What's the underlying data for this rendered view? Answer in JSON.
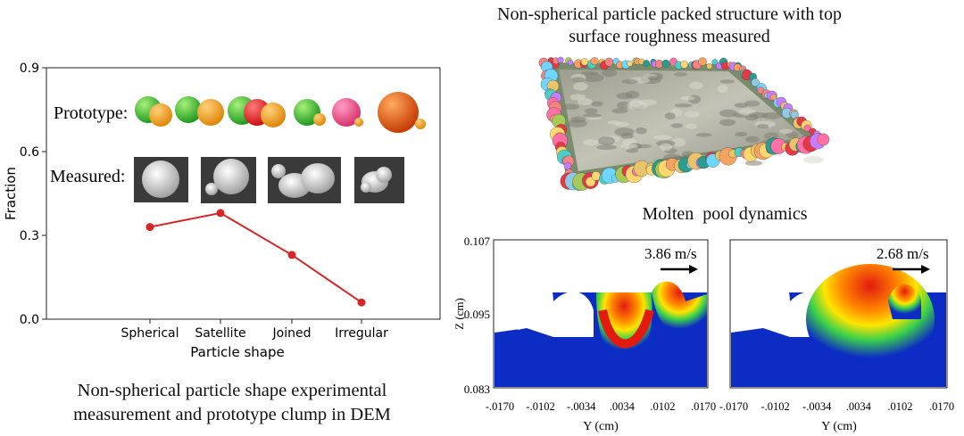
{
  "left_panel": {
    "caption_line1": "Non-spherical particle shape experimental",
    "caption_line2": "measurement and prototype clump in DEM",
    "prototype_label": "Prototype:",
    "measured_label": "Measured:"
  },
  "top_right": {
    "title_line1": "Non-spherical particle packed structure with top",
    "title_line2": "surface roughness measured"
  },
  "bottom_right": {
    "title": "Molten  pool dynamics",
    "left_plot": {
      "velocity_label": "3.86 m/s"
    },
    "right_plot": {
      "velocity_label": "2.68 m/s"
    },
    "ylabel": "Z (cm)",
    "xlabel_left": "Y (cm)",
    "xlabel_right": "Y (cm)",
    "yticks": [
      "0.107",
      "0.095",
      "0.083"
    ],
    "xticks_left": [
      "-.0170",
      "-.0102",
      "-.0034",
      ".0034",
      ".0102",
      ".0170"
    ],
    "xticks_right": [
      "-.0170",
      "-.0102",
      "-.0034",
      ".0034",
      ".0102",
      ".0170"
    ]
  },
  "chart_data": {
    "type": "line",
    "categories": [
      "Spherical",
      "Satellite",
      "Joined",
      "Irregular"
    ],
    "values": [
      0.33,
      0.38,
      0.23,
      0.06
    ],
    "xlabel": "Particle shape",
    "ylabel": "Fraction",
    "ylim": [
      0,
      0.9
    ],
    "yticks": [
      "0.0",
      "0.3",
      "0.6",
      "0.9"
    ],
    "series_color": "#d62728",
    "grid": false
  },
  "colors": {
    "line": "#d62728",
    "pool_blue": "#0d2cc4",
    "pool_red": "#e31a10"
  }
}
